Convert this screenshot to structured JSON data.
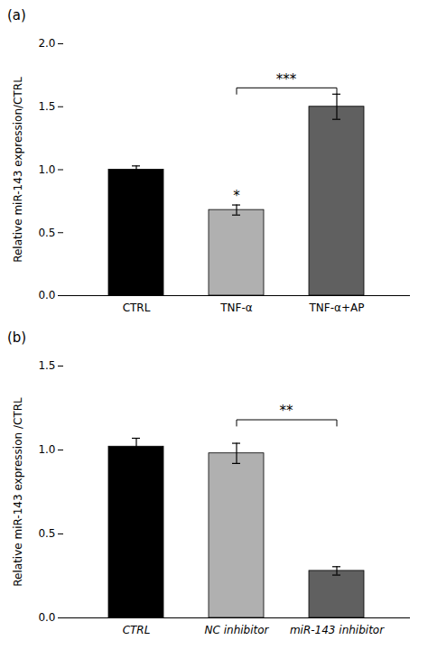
{
  "chart_data": [
    {
      "type": "bar",
      "title": "(a)",
      "categories": [
        "CTRL",
        "TNF-α",
        "TNF-α+AP"
      ],
      "values": [
        1.0,
        0.68,
        1.5
      ],
      "errors": [
        0.03,
        0.04,
        0.1
      ],
      "colors": [
        "#000000",
        "#b0b0b0",
        "#606060"
      ],
      "ylabel": "Relative miR-143 expression/CTRL",
      "ylim": [
        0,
        2.0
      ],
      "yticks": [
        {
          "value": 0,
          "label": "0.0"
        },
        0.5,
        {
          "value": 1,
          "label": "1.0"
        },
        1.5,
        {
          "value": 2,
          "label": "2.0"
        }
      ],
      "annotations": [
        {
          "x1": "TNF-α",
          "x2": "TNF-α+AP",
          "y": 1.65,
          "label": "***"
        },
        {
          "x": "TNF-α",
          "y": 0.74,
          "label": "*"
        }
      ]
    },
    {
      "type": "bar",
      "title": "(b)",
      "categories": [
        "CTRL",
        "NC inhibitor",
        "miR-143 inhibitor"
      ],
      "values": [
        1.02,
        0.98,
        0.28
      ],
      "errors": [
        0.05,
        0.06,
        0.025
      ],
      "colors": [
        "#000000",
        "#b0b0b0",
        "#606060"
      ],
      "ylabel": "Relative miR-143 expression /CTRL",
      "ylim": [
        0,
        1.5
      ],
      "yticks": [
        {
          "value": 0,
          "label": "0.0"
        },
        0.5,
        {
          "value": 1,
          "label": "1.0"
        },
        1.5
      ],
      "annotations": [
        {
          "x1": "NC inhibitor",
          "x2": "miR-143 inhibitor",
          "y": 1.18,
          "label": "**"
        }
      ]
    }
  ]
}
